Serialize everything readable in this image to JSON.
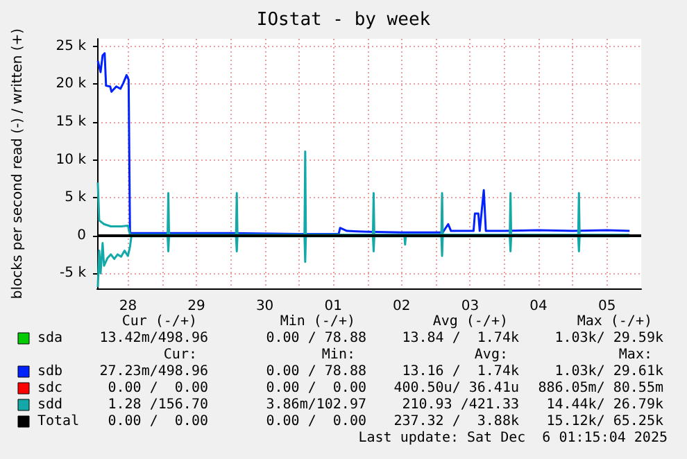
{
  "chart_data": {
    "type": "line",
    "title": "IOstat - by week",
    "ylabel": "blocks per second read (-) / written (+)",
    "xlim": [
      "2025-11-28T01:12",
      "2025-12-06T00:00"
    ],
    "ylim": [
      -7000,
      26000
    ],
    "xticks": [
      {
        "value": "2025-11-28T12:00",
        "label": "28"
      },
      {
        "value": "2025-11-29T00:00",
        "label": null
      },
      {
        "value": "2025-11-29T12:00",
        "label": "29"
      },
      {
        "value": "2025-11-30T00:00",
        "label": null
      },
      {
        "value": "2025-11-30T12:00",
        "label": "30"
      },
      {
        "value": "2025-12-01T00:00",
        "label": null
      },
      {
        "value": "2025-12-01T12:00",
        "label": "01"
      },
      {
        "value": "2025-12-02T00:00",
        "label": null
      },
      {
        "value": "2025-12-02T12:00",
        "label": "02"
      },
      {
        "value": "2025-12-03T00:00",
        "label": null
      },
      {
        "value": "2025-12-03T12:00",
        "label": "03"
      },
      {
        "value": "2025-12-04T00:00",
        "label": null
      },
      {
        "value": "2025-12-04T12:00",
        "label": "04"
      },
      {
        "value": "2025-12-05T00:00",
        "label": null
      },
      {
        "value": "2025-12-05T12:00",
        "label": "05"
      }
    ],
    "yticks": [
      {
        "value": -5000,
        "label": "-5 k"
      },
      0,
      {
        "value": 5000,
        "label": "5 k"
      },
      {
        "value": 10000,
        "label": "10 k"
      },
      {
        "value": 15000,
        "label": "15 k"
      },
      {
        "value": 20000,
        "label": "20 k"
      },
      {
        "value": 25000,
        "label": "25 k"
      }
    ],
    "grid": true,
    "legend": "bottom",
    "marker": "none",
    "line_style": "solid",
    "ref_lines": [
      {
        "axis": "y",
        "value": 0,
        "color": "#000000"
      }
    ],
    "series": [
      {
        "name": "sda",
        "color": "#00cc00"
      },
      {
        "name": "sdb",
        "color": "#0022ff",
        "x": [
          "2025-11-28T01:26",
          "2025-11-28T02:24",
          "2025-11-28T03:07",
          "2025-11-28T03:50",
          "2025-11-28T04:19",
          "2025-11-28T05:46",
          "2025-11-28T06:14",
          "2025-11-28T07:55",
          "2025-11-28T09:22",
          "2025-11-28T10:19",
          "2025-11-28T11:31",
          "2025-11-28T12:14",
          "2025-11-28T12:43",
          "2025-11-29T00:00",
          "2025-11-30T00:00",
          "2025-12-01T00:00",
          "2025-12-01T13:55",
          "2025-12-01T14:24",
          "2025-12-01T16:48",
          "2025-12-02T00:00",
          "2025-12-02T12:00",
          "2025-12-03T02:24",
          "2025-12-03T04:19",
          "2025-12-03T05:17",
          "2025-12-03T13:12",
          "2025-12-03T13:41",
          "2025-12-03T14:53",
          "2025-12-03T15:22",
          "2025-12-03T16:05",
          "2025-12-03T16:48",
          "2025-12-03T17:31",
          "2025-12-04T00:00",
          "2025-12-04T12:00",
          "2025-12-05T00:00",
          "2025-12-05T12:00",
          "2025-12-05T19:55"
        ],
        "values": [
          23100,
          21600,
          23800,
          24100,
          19800,
          19700,
          19000,
          19700,
          19400,
          20100,
          21200,
          20600,
          300,
          300,
          300,
          200,
          200,
          1000,
          600,
          500,
          400,
          400,
          1500,
          600,
          600,
          2900,
          2900,
          600,
          3300,
          6000,
          600,
          600,
          700,
          600,
          700,
          600
        ]
      },
      {
        "name": "sdc",
        "color": "#ff0000"
      },
      {
        "name": "sdd",
        "color": "#14a8a8",
        "x": [
          "2025-11-28T01:26",
          "2025-11-28T01:55",
          "2025-11-28T03:36",
          "2025-11-28T06:00",
          "2025-11-28T09:36",
          "2025-11-28T12:00",
          "2025-11-28T12:43",
          "2025-11-29T01:55",
          "2025-11-29T02:10",
          "2025-11-29T02:24",
          "2025-11-30T01:55",
          "2025-11-30T02:10",
          "2025-11-30T02:24",
          "2025-12-01T01:55",
          "2025-12-01T02:10",
          "2025-12-01T02:24",
          "2025-12-02T01:55",
          "2025-12-02T02:10",
          "2025-12-02T02:24",
          "2025-12-03T01:55",
          "2025-12-03T02:10",
          "2025-12-03T02:24",
          "2025-12-04T01:55",
          "2025-12-04T02:10",
          "2025-12-04T02:24",
          "2025-12-05T01:55",
          "2025-12-05T02:10",
          "2025-12-05T02:24",
          "2025-12-05T19:55"
        ],
        "values": [
          7000,
          2000,
          1500,
          1200,
          1200,
          1300,
          100,
          100,
          5600,
          100,
          100,
          5600,
          100,
          100,
          11100,
          100,
          100,
          5600,
          100,
          100,
          5600,
          100,
          100,
          5600,
          100,
          100,
          5600,
          100,
          100
        ]
      },
      {
        "color": "#14a8a8",
        "x": [
          "2025-11-28T01:26",
          "2025-11-28T01:55",
          "2025-11-28T02:24",
          "2025-11-28T03:07",
          "2025-11-28T03:36",
          "2025-11-28T04:48",
          "2025-11-28T06:00",
          "2025-11-28T07:12",
          "2025-11-28T08:24",
          "2025-11-28T09:36",
          "2025-11-28T10:48",
          "2025-11-28T12:00",
          "2025-11-28T12:43",
          "2025-11-28T13:12",
          "2025-11-29T01:55",
          "2025-11-29T02:10",
          "2025-11-29T02:24",
          "2025-11-30T01:55",
          "2025-11-30T02:10",
          "2025-11-30T02:24",
          "2025-12-01T01:55",
          "2025-12-01T02:10",
          "2025-12-01T02:24",
          "2025-12-02T01:55",
          "2025-12-02T02:10",
          "2025-12-02T02:24",
          "2025-12-02T12:58",
          "2025-12-02T13:12",
          "2025-12-02T13:26",
          "2025-12-03T01:55",
          "2025-12-03T02:10",
          "2025-12-03T02:24",
          "2025-12-04T01:55",
          "2025-12-04T02:10",
          "2025-12-04T02:24",
          "2025-12-05T01:55",
          "2025-12-05T02:10",
          "2025-12-05T02:24",
          "2025-12-05T19:55"
        ],
        "values": [
          -6800,
          -2000,
          -5000,
          -1000,
          -4000,
          -3000,
          -2500,
          -3100,
          -2500,
          -2800,
          -2000,
          -2700,
          -1500,
          -100,
          -100,
          -2100,
          -100,
          -100,
          -2100,
          -100,
          -100,
          -3500,
          -100,
          -100,
          -2100,
          -100,
          -100,
          -1200,
          -100,
          -100,
          -2700,
          -100,
          -100,
          -2100,
          -100,
          -100,
          -2100,
          -100,
          -100
        ]
      },
      {
        "name": "Total",
        "color": "#000000"
      }
    ],
    "annotations": [
      "Cur (-/+)",
      "Min (-/+)",
      "Avg (-/+)",
      "Max (-/+)",
      "13.42m/498.96",
      "0.00 / 78.88",
      "13.84 /  1.74k",
      "1.03k/ 29.59k",
      "Cur:",
      "Min:",
      "Avg:",
      "Max:",
      "27.23m/498.96",
      "0.00 / 78.88",
      "13.16 /  1.74k",
      "1.03k/ 29.61k",
      "0.00 /  0.00",
      "0.00 /  0.00",
      "400.50u/ 36.41u",
      "886.05m/ 80.55m",
      "1.28 /156.70",
      "3.86m/102.97",
      "210.93 /421.33",
      "14.44k/ 26.79k",
      "0.00 /  0.00",
      "0.00 /  0.00",
      "237.32 /  3.88k",
      "15.12k/ 65.25k",
      "Last update: Sat Dec  6 01:15:04 2025"
    ]
  }
}
